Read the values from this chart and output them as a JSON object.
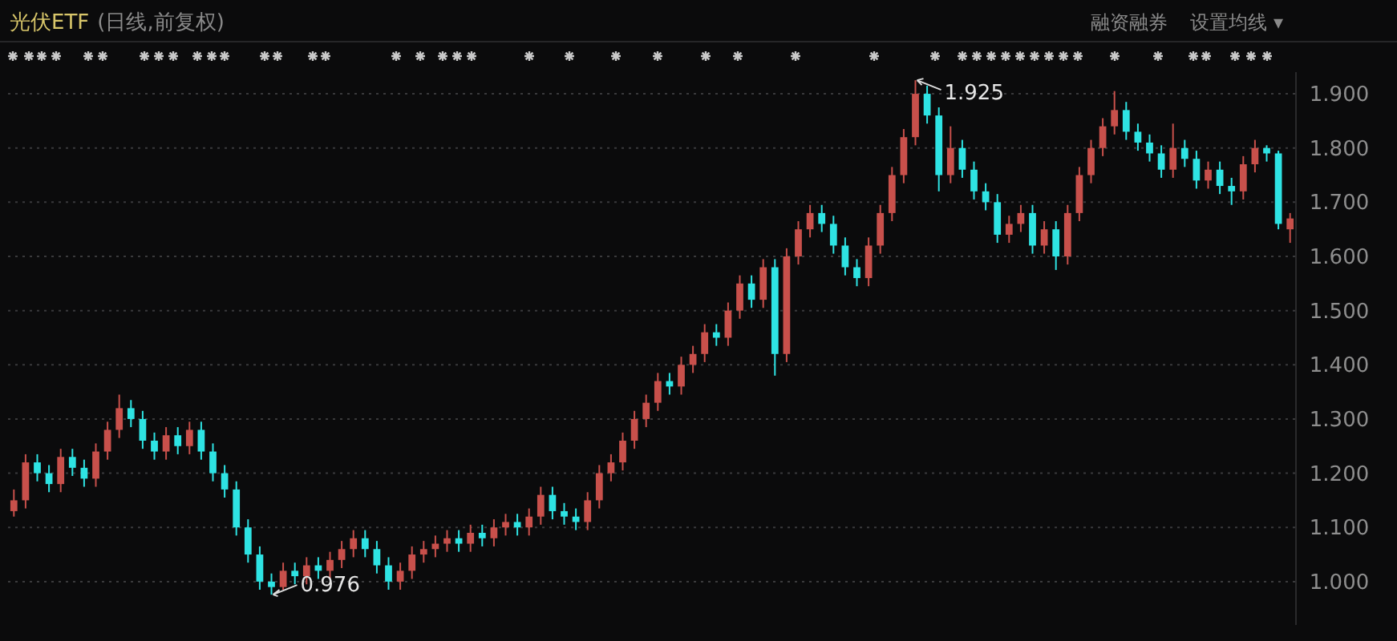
{
  "chart_data": {
    "type": "candlestick",
    "title": "光伏ETF",
    "subtitle": "(日线,前复权)",
    "annotations": [
      "融资融券",
      "设置均线 ▾",
      "1.925",
      "0.976"
    ],
    "ylim": [
      0.92,
      1.94
    ],
    "yticks": [
      {
        "value": 1.0,
        "label": "1.000"
      },
      {
        "value": 1.1,
        "label": "1.100"
      },
      {
        "value": 1.2,
        "label": "1.200"
      },
      {
        "value": 1.3,
        "label": "1.300"
      },
      {
        "value": 1.4,
        "label": "1.400"
      },
      {
        "value": 1.5,
        "label": "1.500"
      },
      {
        "value": 1.6,
        "label": "1.600"
      },
      {
        "value": 1.7,
        "label": "1.700"
      },
      {
        "value": 1.8,
        "label": "1.800"
      },
      {
        "value": 1.9,
        "label": "1.900"
      }
    ],
    "grid": "y",
    "categories": [
      null,
      null,
      null,
      null,
      null,
      null,
      null,
      null,
      null,
      null,
      null,
      null,
      null,
      null,
      null,
      null,
      null,
      null,
      null,
      null,
      null,
      null,
      null,
      null,
      null,
      null,
      null,
      null,
      null,
      null,
      null,
      null,
      null,
      null,
      null,
      null,
      null,
      null,
      null,
      null,
      null,
      null,
      null,
      null,
      null,
      null,
      null,
      null,
      null,
      null,
      null,
      null,
      null,
      null,
      null,
      null,
      null,
      null,
      null,
      null,
      null,
      null,
      null,
      null,
      null,
      null,
      null,
      null,
      null,
      null,
      null,
      null,
      null,
      null,
      null,
      null,
      null,
      null,
      null,
      null,
      null,
      null,
      null,
      null,
      null,
      null,
      null,
      null,
      null,
      null,
      null,
      null,
      null,
      null,
      null,
      null,
      null,
      null,
      null,
      null,
      null,
      null,
      null,
      null,
      null,
      null,
      null,
      null,
      null,
      null
    ],
    "ohlc": [
      [
        1.13,
        1.17,
        1.12,
        1.15
      ],
      [
        1.15,
        1.235,
        1.135,
        1.22
      ],
      [
        1.22,
        1.235,
        1.185,
        1.2
      ],
      [
        1.2,
        1.215,
        1.165,
        1.18
      ],
      [
        1.18,
        1.245,
        1.165,
        1.23
      ],
      [
        1.23,
        1.245,
        1.195,
        1.21
      ],
      [
        1.21,
        1.225,
        1.175,
        1.19
      ],
      [
        1.19,
        1.255,
        1.175,
        1.24
      ],
      [
        1.24,
        1.295,
        1.225,
        1.28
      ],
      [
        1.28,
        1.345,
        1.265,
        1.32
      ],
      [
        1.32,
        1.335,
        1.285,
        1.3
      ],
      [
        1.3,
        1.315,
        1.245,
        1.26
      ],
      [
        1.26,
        1.275,
        1.225,
        1.24
      ],
      [
        1.24,
        1.285,
        1.225,
        1.27
      ],
      [
        1.27,
        1.285,
        1.235,
        1.25
      ],
      [
        1.25,
        1.295,
        1.235,
        1.28
      ],
      [
        1.28,
        1.295,
        1.225,
        1.24
      ],
      [
        1.24,
        1.255,
        1.185,
        1.2
      ],
      [
        1.2,
        1.215,
        1.155,
        1.17
      ],
      [
        1.17,
        1.185,
        1.085,
        1.1
      ],
      [
        1.1,
        1.115,
        1.035,
        1.05
      ],
      [
        1.05,
        1.065,
        0.985,
        1.0
      ],
      [
        1.0,
        1.015,
        0.976,
        0.99
      ],
      [
        0.99,
        1.035,
        0.985,
        1.02
      ],
      [
        1.02,
        1.035,
        0.995,
        1.01
      ],
      [
        1.01,
        1.045,
        0.995,
        1.03
      ],
      [
        1.03,
        1.045,
        1.005,
        1.02
      ],
      [
        1.02,
        1.055,
        1.005,
        1.04
      ],
      [
        1.04,
        1.075,
        1.025,
        1.06
      ],
      [
        1.06,
        1.095,
        1.045,
        1.08
      ],
      [
        1.08,
        1.095,
        1.045,
        1.06
      ],
      [
        1.06,
        1.075,
        1.015,
        1.03
      ],
      [
        1.03,
        1.045,
        0.985,
        1.0
      ],
      [
        1.0,
        1.035,
        0.985,
        1.02
      ],
      [
        1.02,
        1.065,
        1.005,
        1.05
      ],
      [
        1.05,
        1.075,
        1.035,
        1.06
      ],
      [
        1.06,
        1.085,
        1.045,
        1.07
      ],
      [
        1.07,
        1.095,
        1.055,
        1.08
      ],
      [
        1.08,
        1.095,
        1.055,
        1.07
      ],
      [
        1.07,
        1.105,
        1.055,
        1.09
      ],
      [
        1.09,
        1.105,
        1.065,
        1.08
      ],
      [
        1.08,
        1.115,
        1.065,
        1.1
      ],
      [
        1.1,
        1.125,
        1.085,
        1.11
      ],
      [
        1.11,
        1.125,
        1.085,
        1.1
      ],
      [
        1.1,
        1.135,
        1.085,
        1.12
      ],
      [
        1.12,
        1.175,
        1.105,
        1.16
      ],
      [
        1.16,
        1.175,
        1.115,
        1.13
      ],
      [
        1.13,
        1.145,
        1.105,
        1.12
      ],
      [
        1.12,
        1.135,
        1.095,
        1.11
      ],
      [
        1.11,
        1.165,
        1.095,
        1.15
      ],
      [
        1.15,
        1.215,
        1.135,
        1.2
      ],
      [
        1.2,
        1.235,
        1.185,
        1.22
      ],
      [
        1.22,
        1.275,
        1.205,
        1.26
      ],
      [
        1.26,
        1.315,
        1.245,
        1.3
      ],
      [
        1.3,
        1.345,
        1.285,
        1.33
      ],
      [
        1.33,
        1.385,
        1.315,
        1.37
      ],
      [
        1.37,
        1.385,
        1.345,
        1.36
      ],
      [
        1.36,
        1.415,
        1.345,
        1.4
      ],
      [
        1.4,
        1.435,
        1.385,
        1.42
      ],
      [
        1.42,
        1.475,
        1.405,
        1.46
      ],
      [
        1.46,
        1.475,
        1.435,
        1.45
      ],
      [
        1.45,
        1.515,
        1.435,
        1.5
      ],
      [
        1.5,
        1.565,
        1.485,
        1.55
      ],
      [
        1.55,
        1.565,
        1.505,
        1.52
      ],
      [
        1.52,
        1.595,
        1.505,
        1.58
      ],
      [
        1.58,
        1.595,
        1.38,
        1.42
      ],
      [
        1.42,
        1.615,
        1.405,
        1.6
      ],
      [
        1.6,
        1.665,
        1.585,
        1.65
      ],
      [
        1.65,
        1.695,
        1.635,
        1.68
      ],
      [
        1.68,
        1.695,
        1.645,
        1.66
      ],
      [
        1.66,
        1.675,
        1.605,
        1.62
      ],
      [
        1.62,
        1.635,
        1.565,
        1.58
      ],
      [
        1.58,
        1.595,
        1.545,
        1.56
      ],
      [
        1.56,
        1.635,
        1.545,
        1.62
      ],
      [
        1.62,
        1.695,
        1.605,
        1.68
      ],
      [
        1.68,
        1.765,
        1.665,
        1.75
      ],
      [
        1.75,
        1.835,
        1.735,
        1.82
      ],
      [
        1.82,
        1.925,
        1.805,
        1.9
      ],
      [
        1.9,
        1.915,
        1.845,
        1.86
      ],
      [
        1.86,
        1.875,
        1.72,
        1.75
      ],
      [
        1.75,
        1.84,
        1.735,
        1.8
      ],
      [
        1.8,
        1.815,
        1.745,
        1.76
      ],
      [
        1.76,
        1.775,
        1.705,
        1.72
      ],
      [
        1.72,
        1.735,
        1.685,
        1.7
      ],
      [
        1.7,
        1.715,
        1.625,
        1.64
      ],
      [
        1.64,
        1.675,
        1.625,
        1.66
      ],
      [
        1.66,
        1.695,
        1.645,
        1.68
      ],
      [
        1.68,
        1.695,
        1.605,
        1.62
      ],
      [
        1.62,
        1.665,
        1.605,
        1.65
      ],
      [
        1.65,
        1.665,
        1.575,
        1.6
      ],
      [
        1.6,
        1.695,
        1.585,
        1.68
      ],
      [
        1.68,
        1.765,
        1.665,
        1.75
      ],
      [
        1.75,
        1.815,
        1.735,
        1.8
      ],
      [
        1.8,
        1.855,
        1.785,
        1.84
      ],
      [
        1.84,
        1.905,
        1.825,
        1.87
      ],
      [
        1.87,
        1.885,
        1.815,
        1.83
      ],
      [
        1.83,
        1.845,
        1.795,
        1.81
      ],
      [
        1.81,
        1.825,
        1.775,
        1.79
      ],
      [
        1.79,
        1.805,
        1.745,
        1.76
      ],
      [
        1.76,
        1.845,
        1.745,
        1.8
      ],
      [
        1.8,
        1.815,
        1.765,
        1.78
      ],
      [
        1.78,
        1.795,
        1.725,
        1.74
      ],
      [
        1.74,
        1.775,
        1.725,
        1.76
      ],
      [
        1.76,
        1.775,
        1.715,
        1.73
      ],
      [
        1.73,
        1.745,
        1.695,
        1.72
      ],
      [
        1.72,
        1.785,
        1.705,
        1.77
      ],
      [
        1.77,
        1.815,
        1.755,
        1.8
      ],
      [
        1.8,
        1.805,
        1.775,
        1.79
      ],
      [
        1.79,
        1.795,
        1.65,
        1.66
      ],
      [
        1.65,
        1.68,
        1.625,
        1.67
      ]
    ],
    "colors": [
      "#c8504b",
      "#c8504b",
      "#2ee3e3",
      "#2ee3e3",
      "#c8504b",
      "#2ee3e3",
      "#2ee3e3",
      "#c8504b",
      "#c8504b",
      "#c8504b",
      "#2ee3e3",
      "#2ee3e3",
      "#2ee3e3",
      "#c8504b",
      "#2ee3e3",
      "#c8504b",
      "#2ee3e3",
      "#2ee3e3",
      "#2ee3e3",
      "#2ee3e3",
      "#2ee3e3",
      "#2ee3e3",
      "#2ee3e3",
      "#c8504b",
      "#2ee3e3",
      "#c8504b",
      "#2ee3e3",
      "#c8504b",
      "#c8504b",
      "#c8504b",
      "#2ee3e3",
      "#2ee3e3",
      "#2ee3e3",
      "#c8504b",
      "#c8504b",
      "#c8504b",
      "#c8504b",
      "#c8504b",
      "#2ee3e3",
      "#c8504b",
      "#2ee3e3",
      "#c8504b",
      "#c8504b",
      "#2ee3e3",
      "#c8504b",
      "#c8504b",
      "#2ee3e3",
      "#2ee3e3",
      "#2ee3e3",
      "#c8504b",
      "#c8504b",
      "#c8504b",
      "#c8504b",
      "#c8504b",
      "#c8504b",
      "#c8504b",
      "#2ee3e3",
      "#c8504b",
      "#c8504b",
      "#c8504b",
      "#2ee3e3",
      "#c8504b",
      "#c8504b",
      "#2ee3e3",
      "#c8504b",
      "#2ee3e3",
      "#c8504b",
      "#c8504b",
      "#c8504b",
      "#2ee3e3",
      "#2ee3e3",
      "#2ee3e3",
      "#2ee3e3",
      "#c8504b",
      "#c8504b",
      "#c8504b",
      "#c8504b",
      "#c8504b",
      "#2ee3e3",
      "#2ee3e3",
      "#c8504b",
      "#2ee3e3",
      "#2ee3e3",
      "#2ee3e3",
      "#2ee3e3",
      "#c8504b",
      "#c8504b",
      "#2ee3e3",
      "#c8504b",
      "#2ee3e3",
      "#c8504b",
      "#c8504b",
      "#c8504b",
      "#c8504b",
      "#c8504b",
      "#2ee3e3",
      "#2ee3e3",
      "#2ee3e3",
      "#2ee3e3",
      "#c8504b",
      "#2ee3e3",
      "#2ee3e3",
      "#c8504b",
      "#2ee3e3",
      "#2ee3e3",
      "#c8504b",
      "#c8504b",
      "#2ee3e3",
      "#2ee3e3",
      "#c8504b"
    ]
  }
}
